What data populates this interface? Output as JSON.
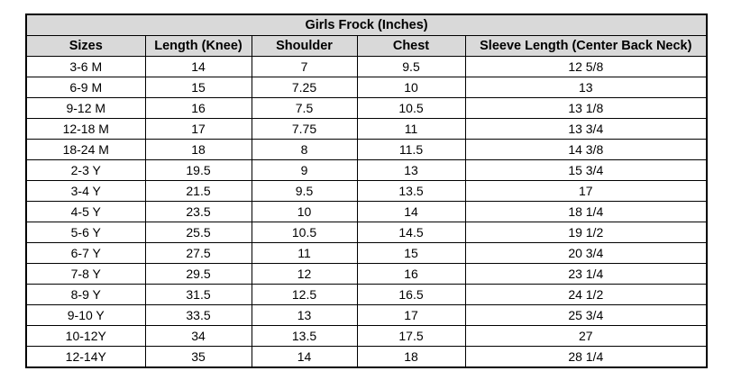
{
  "table": {
    "title": "Girls Frock (Inches)",
    "columns": [
      "Sizes",
      "Length (Knee)",
      "Shoulder",
      "Chest",
      "Sleeve Length (Center Back Neck)"
    ],
    "rows": [
      [
        "3-6 M",
        "14",
        "7",
        "9.5",
        "12 5/8"
      ],
      [
        "6-9 M",
        "15",
        "7.25",
        "10",
        "13"
      ],
      [
        "9-12 M",
        "16",
        "7.5",
        "10.5",
        "13 1/8"
      ],
      [
        "12-18 M",
        "17",
        "7.75",
        "11",
        "13 3/4"
      ],
      [
        "18-24 M",
        "18",
        "8",
        "11.5",
        "14 3/8"
      ],
      [
        "2-3 Y",
        "19.5",
        "9",
        "13",
        "15 3/4"
      ],
      [
        "3-4 Y",
        "21.5",
        "9.5",
        "13.5",
        "17"
      ],
      [
        "4-5 Y",
        "23.5",
        "10",
        "14",
        "18 1/4"
      ],
      [
        "5-6 Y",
        "25.5",
        "10.5",
        "14.5",
        "19 1/2"
      ],
      [
        "6-7 Y",
        "27.5",
        "11",
        "15",
        "20 3/4"
      ],
      [
        "7-8 Y",
        "29.5",
        "12",
        "16",
        "23 1/4"
      ],
      [
        "8-9 Y",
        "31.5",
        "12.5",
        "16.5",
        "24 1/2"
      ],
      [
        "9-10 Y",
        "33.5",
        "13",
        "17",
        "25 3/4"
      ],
      [
        "10-12Y",
        "34",
        "13.5",
        "17.5",
        "27"
      ],
      [
        "12-14Y",
        "35",
        "14",
        "18",
        "28 1/4"
      ]
    ]
  }
}
